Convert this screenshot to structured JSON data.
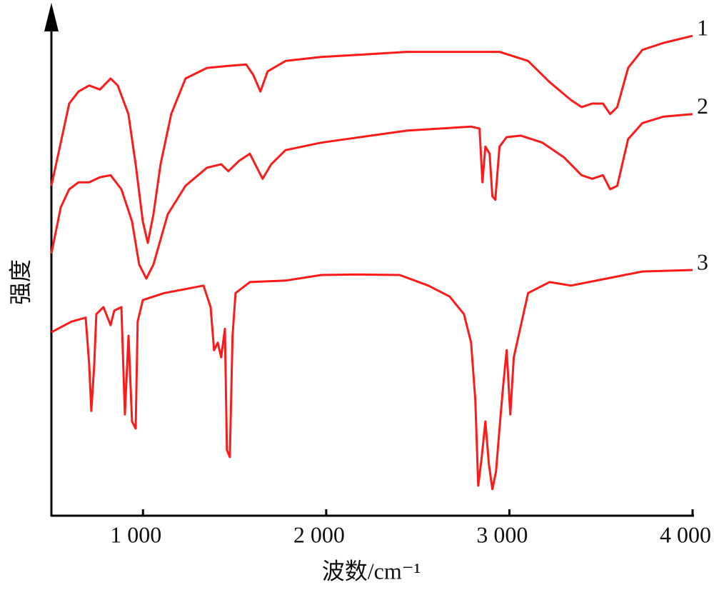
{
  "chart_data": {
    "type": "line",
    "xlabel": "波数/cm⁻¹",
    "ylabel": "强度",
    "xlim": [
      500,
      4000
    ],
    "ylim": [
      0,
      100
    ],
    "xticks": [
      {
        "value": 1000,
        "label": "1 000"
      },
      {
        "value": 2000,
        "label": "2 000"
      },
      {
        "value": 3000,
        "label": "3 000"
      },
      {
        "value": 4000,
        "label": "4 000"
      }
    ],
    "series": [
      {
        "name": "1",
        "color": "#ff1a1a",
        "x": [
          500,
          551,
          597,
          648,
          706,
          765,
          823,
          862,
          920,
          960,
          999,
          1026,
          1057,
          1096,
          1154,
          1232,
          1349,
          1466,
          1563,
          1602,
          1641,
          1680,
          1778,
          1973,
          2167,
          2440,
          2946,
          3102,
          3219,
          3336,
          3394,
          3452,
          3511,
          3550,
          3589,
          3648,
          3726,
          3842,
          4000
        ],
        "values": [
          65.8,
          74.4,
          82.2,
          84.6,
          85.8,
          85.0,
          87.2,
          85.8,
          80.1,
          70.1,
          58.7,
          54.4,
          60.1,
          70.1,
          80.1,
          87.2,
          89.3,
          89.7,
          90.0,
          87.9,
          84.6,
          88.6,
          90.7,
          91.5,
          91.9,
          92.5,
          92.5,
          90.7,
          86.5,
          82.9,
          81.5,
          82.2,
          82.2,
          80.1,
          81.5,
          89.3,
          92.9,
          94.3,
          95.7
        ]
      },
      {
        "name": "2",
        "color": "#ff1a1a",
        "x": [
          500,
          551,
          597,
          648,
          706,
          765,
          823,
          882,
          940,
          979,
          1018,
          1057,
          1135,
          1232,
          1349,
          1427,
          1466,
          1525,
          1583,
          1622,
          1653,
          1700,
          1778,
          1973,
          2167,
          2440,
          2791,
          2837,
          2853,
          2869,
          2892,
          2907,
          2923,
          2946,
          2985,
          3063,
          3180,
          3297,
          3394,
          3452,
          3511,
          3550,
          3589,
          3648,
          3726,
          3842,
          4000
        ],
        "values": [
          52.3,
          61.5,
          65.1,
          66.5,
          66.5,
          67.5,
          67.9,
          65.1,
          58.7,
          50.1,
          47.3,
          50.1,
          60.1,
          65.8,
          69.4,
          70.1,
          68.7,
          70.8,
          72.2,
          69.4,
          67.2,
          70.1,
          72.9,
          74.4,
          75.4,
          76.8,
          77.6,
          77.2,
          66.5,
          73.6,
          72.2,
          63.7,
          63.0,
          73.6,
          75.5,
          75.8,
          74.4,
          71.5,
          67.9,
          67.2,
          67.9,
          65.1,
          65.8,
          75.1,
          78.3,
          79.6,
          80.1
        ]
      },
      {
        "name": "3",
        "color": "#ff1a1a",
        "x": [
          500,
          609,
          687,
          706,
          718,
          734,
          745,
          784,
          823,
          843,
          882,
          901,
          921,
          940,
          960,
          971,
          999,
          1116,
          1232,
          1330,
          1369,
          1388,
          1408,
          1427,
          1447,
          1458,
          1474,
          1489,
          1505,
          1583,
          1778,
          1973,
          2167,
          2401,
          2557,
          2674,
          2752,
          2791,
          2814,
          2830,
          2849,
          2869,
          2888,
          2907,
          2927,
          2946,
          2966,
          2985,
          3005,
          3024,
          3102,
          3219,
          3336,
          3530,
          3726,
          4000
        ],
        "values": [
          36.6,
          38.7,
          39.5,
          30.2,
          20.9,
          30.2,
          40.2,
          41.6,
          38.0,
          40.9,
          41.6,
          20.2,
          35.9,
          18.8,
          17.4,
          38.7,
          43.0,
          44.4,
          45.2,
          45.9,
          41.6,
          33.0,
          34.5,
          31.6,
          37.3,
          13.1,
          11.7,
          35.9,
          44.4,
          46.6,
          46.9,
          48.0,
          48.1,
          48.0,
          45.9,
          43.7,
          40.2,
          34.5,
          23.1,
          6.0,
          11.7,
          18.8,
          10.3,
          5.3,
          8.8,
          17.4,
          25.9,
          33.0,
          20.2,
          31.6,
          44.4,
          46.6,
          45.9,
          47.3,
          48.7,
          49.0
        ]
      }
    ]
  }
}
